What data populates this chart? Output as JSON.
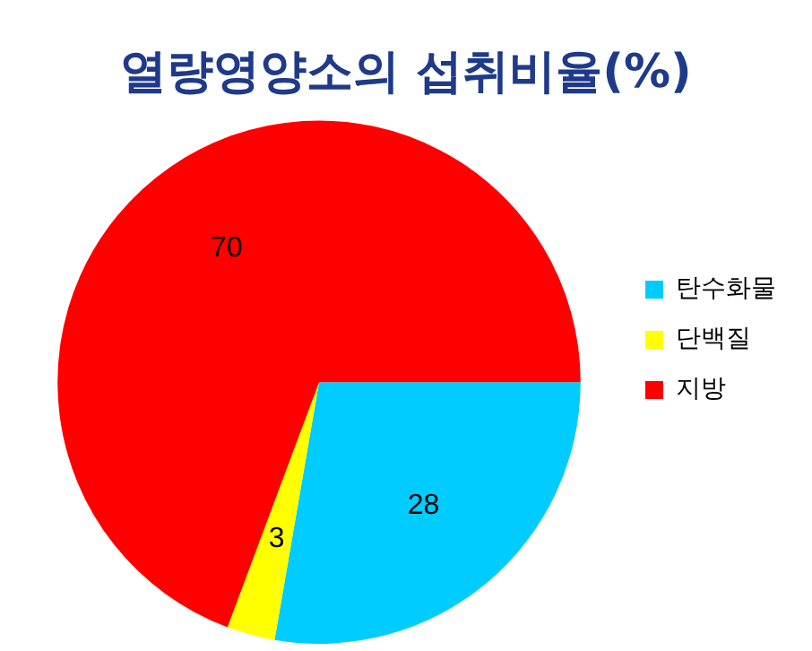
{
  "chart_data": {
    "type": "pie",
    "title": "열량영양소의 섭취비율(%)",
    "categories": [
      "탄수화물",
      "단백질",
      "지방"
    ],
    "values": [
      28,
      3,
      70
    ],
    "colors": [
      "#00ccff",
      "#ffff00",
      "#ff0000"
    ],
    "data_labels": true,
    "legend": "right"
  }
}
